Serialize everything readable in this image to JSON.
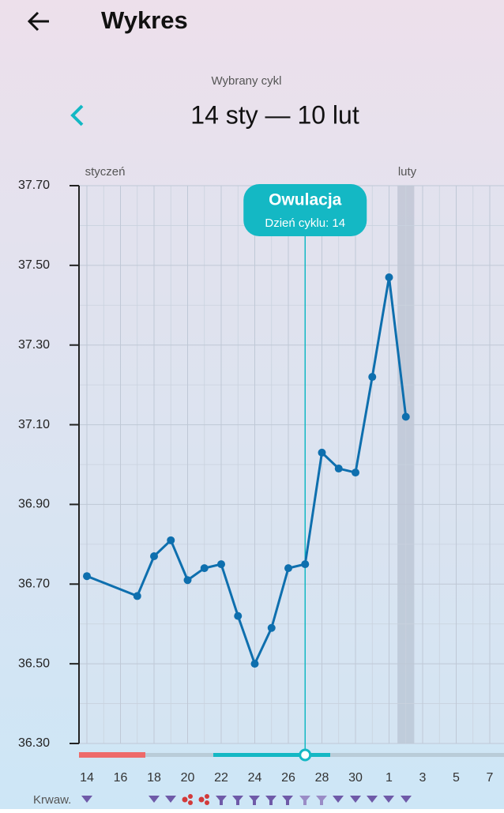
{
  "header": {
    "title": "Wykres"
  },
  "cycle": {
    "caption": "Wybrany cykl",
    "range": "14 sty — 10 lut"
  },
  "chart_data": {
    "type": "line",
    "x": [
      1,
      4,
      5,
      6,
      7,
      8,
      9,
      10,
      11,
      12,
      13,
      14,
      15,
      16,
      17,
      18,
      19,
      20
    ],
    "series": [
      {
        "color": "#0e6fae",
        "values": [
          36.72,
          36.67,
          36.77,
          36.81,
          36.71,
          36.74,
          36.75,
          36.62,
          36.5,
          36.59,
          36.74,
          36.75,
          37.03,
          36.99,
          36.98,
          37.22,
          37.47,
          37.12
        ]
      }
    ],
    "xlim": [
      1,
      25
    ],
    "xticks": [
      {
        "value": 1,
        "label": "14"
      },
      {
        "value": 3,
        "label": "16"
      },
      {
        "value": 5,
        "label": "18"
      },
      {
        "value": 7,
        "label": "20"
      },
      {
        "value": 9,
        "label": "22"
      },
      {
        "value": 11,
        "label": "24"
      },
      {
        "value": 13,
        "label": "26"
      },
      {
        "value": 15,
        "label": "28"
      },
      {
        "value": 17,
        "label": "30"
      },
      {
        "value": 19,
        "label": "1"
      },
      {
        "value": 21,
        "label": "3"
      },
      {
        "value": 23,
        "label": "5"
      },
      {
        "value": 25,
        "label": "7"
      }
    ],
    "ylim": [
      36.3,
      37.7
    ],
    "yticks": [
      {
        "value": 36.3,
        "label": "36.30"
      },
      {
        "value": 36.5,
        "label": "36.50"
      },
      {
        "value": 36.7,
        "label": "36.70"
      },
      {
        "value": 36.9,
        "label": "36.90"
      },
      {
        "value": 37.1,
        "label": "37.10"
      },
      {
        "value": 37.3,
        "label": "37.30"
      },
      {
        "value": 37.5,
        "label": "37.50"
      },
      {
        "value": 37.7,
        "label": "37.70"
      }
    ],
    "grid": true,
    "months": [
      {
        "label": "styczeń",
        "x": 1
      },
      {
        "label": "luty",
        "x": 19
      }
    ],
    "annotation": {
      "title": "Owulacja",
      "label": "Dzień cyklu: 14",
      "x": 14,
      "color": "#14b8c4"
    },
    "bleeding_label": "Krwaw."
  }
}
